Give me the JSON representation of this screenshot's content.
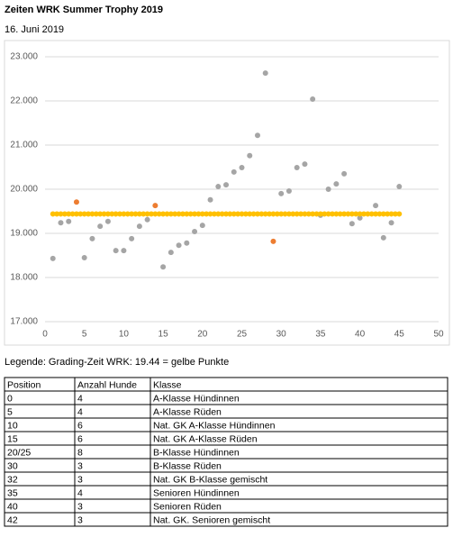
{
  "header": {
    "title": "Zeiten WRK Summer Trophy 2019",
    "date": "16. Juni 2019"
  },
  "chart_data": {
    "type": "scatter",
    "xlim": [
      0,
      50
    ],
    "xticks": [
      0,
      5,
      10,
      15,
      20,
      25,
      30,
      35,
      40,
      45,
      50
    ],
    "ylim": [
      17,
      23
    ],
    "yticks": [
      {
        "value": 17,
        "label": "17.000"
      },
      {
        "value": 18,
        "label": "18.000"
      },
      {
        "value": 19,
        "label": "19.000"
      },
      {
        "value": 20,
        "label": "20.000"
      },
      {
        "value": 21,
        "label": "21.000"
      },
      {
        "value": 22,
        "label": "22.000"
      },
      {
        "value": 23,
        "label": "23.000"
      }
    ],
    "grid": true,
    "series": [
      {
        "color": "#a5a5a5",
        "x": [
          1,
          2,
          3,
          5,
          6,
          7,
          8,
          9,
          10,
          11,
          12,
          13,
          15,
          16,
          17,
          18,
          19,
          20,
          21,
          22,
          23,
          24,
          25,
          26,
          27,
          28,
          30,
          31,
          32,
          33,
          34,
          35,
          36,
          37,
          38,
          39,
          40,
          42,
          43,
          44,
          45
        ],
        "values": [
          18.43,
          19.24,
          19.27,
          18.45,
          18.88,
          19.16,
          19.27,
          18.61,
          18.61,
          18.88,
          19.16,
          19.31,
          18.24,
          18.57,
          18.73,
          18.78,
          19.04,
          19.18,
          19.76,
          20.06,
          20.1,
          20.39,
          20.49,
          20.76,
          21.22,
          22.63,
          19.9,
          19.96,
          20.49,
          20.57,
          22.04,
          19.41,
          20.0,
          20.12,
          20.35,
          19.22,
          19.35,
          19.63,
          18.9,
          19.24,
          20.06
        ]
      },
      {
        "color": "#ed7d31",
        "x": [
          4,
          14,
          29
        ],
        "values": [
          19.71,
          19.63,
          18.82
        ]
      },
      {
        "color": "#ffc000",
        "x": [
          1,
          1.5,
          2,
          2.5,
          3,
          3.5,
          4,
          4.5,
          5,
          5.5,
          6,
          6.5,
          7,
          7.5,
          8,
          8.5,
          9,
          9.5,
          10,
          10.5,
          11,
          11.5,
          12,
          12.5,
          13,
          13.5,
          14,
          14.5,
          15,
          15.5,
          16,
          16.5,
          17,
          17.5,
          18,
          18.5,
          19,
          19.5,
          20,
          20.5,
          21,
          21.5,
          22,
          22.5,
          23,
          23.5,
          24,
          24.5,
          25,
          25.5,
          26,
          26.5,
          27,
          27.5,
          28,
          28.5,
          29,
          29.5,
          30,
          30.5,
          31,
          31.5,
          32,
          32.5,
          33,
          33.5,
          34,
          34.5,
          35,
          35.5,
          36,
          36.5,
          37,
          37.5,
          38,
          38.5,
          39,
          39.5,
          40,
          40.5,
          41,
          41.5,
          42,
          42.5,
          43,
          43.5,
          44,
          44.5,
          45
        ],
        "values": [
          19.44,
          19.44,
          19.44,
          19.44,
          19.44,
          19.44,
          19.44,
          19.44,
          19.44,
          19.44,
          19.44,
          19.44,
          19.44,
          19.44,
          19.44,
          19.44,
          19.44,
          19.44,
          19.44,
          19.44,
          19.44,
          19.44,
          19.44,
          19.44,
          19.44,
          19.44,
          19.44,
          19.44,
          19.44,
          19.44,
          19.44,
          19.44,
          19.44,
          19.44,
          19.44,
          19.44,
          19.44,
          19.44,
          19.44,
          19.44,
          19.44,
          19.44,
          19.44,
          19.44,
          19.44,
          19.44,
          19.44,
          19.44,
          19.44,
          19.44,
          19.44,
          19.44,
          19.44,
          19.44,
          19.44,
          19.44,
          19.44,
          19.44,
          19.44,
          19.44,
          19.44,
          19.44,
          19.44,
          19.44,
          19.44,
          19.44,
          19.44,
          19.44,
          19.44,
          19.44,
          19.44,
          19.44,
          19.44,
          19.44,
          19.44,
          19.44,
          19.44,
          19.44,
          19.44,
          19.44,
          19.44,
          19.44,
          19.44,
          19.44,
          19.44,
          19.44,
          19.44,
          19.44,
          19.44
        ]
      }
    ]
  },
  "legend_note": "Legende: Grading-Zeit WRK: 19.44 = gelbe Punkte",
  "table": {
    "header": [
      "Position",
      "Anzahl Hunde",
      "Klasse"
    ],
    "rows": [
      [
        "0",
        "4",
        "A-Klasse Hündinnen"
      ],
      [
        "5",
        "4",
        "A-Klasse Rüden"
      ],
      [
        "10",
        "6",
        "Nat. GK A-Klasse Hündinnen"
      ],
      [
        "15",
        "6",
        "Nat. GK A-Klasse Rüden"
      ],
      [
        "20/25",
        "8",
        "B-Klasse Hündinnen"
      ],
      [
        "30",
        "3",
        "B-Klasse Rüden"
      ],
      [
        "32",
        "3",
        "Nat. GK B-Klasse gemischt"
      ],
      [
        "35",
        "4",
        "Senioren Hündinnen"
      ],
      [
        "40",
        "3",
        "Senioren Rüden"
      ],
      [
        "42",
        "3",
        "Nat. GK. Senioren gemischt"
      ]
    ]
  }
}
